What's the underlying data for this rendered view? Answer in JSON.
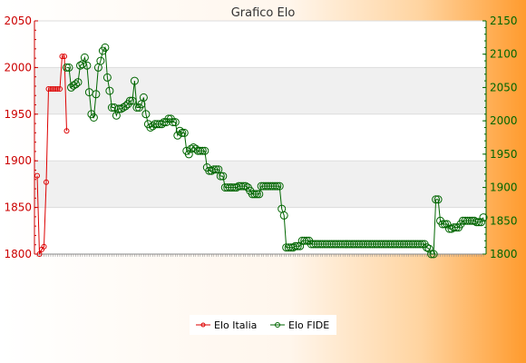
{
  "chart_data": {
    "type": "line",
    "title": "Grafico Elo",
    "grid": true,
    "legend_placement": "bottom-center",
    "left_axis": {
      "range": [
        1800,
        2050
      ],
      "ticks": [
        1800,
        1850,
        1900,
        1950,
        2000,
        2050
      ],
      "color": "#cc0000"
    },
    "right_axis": {
      "range": [
        1800,
        2150
      ],
      "ticks": [
        1800,
        1850,
        1900,
        1950,
        2000,
        2050,
        2100,
        2150
      ],
      "color": "#006600"
    },
    "series": [
      {
        "name": "Elo Italia",
        "axis": "left",
        "color": "#dd0000",
        "start_index": 0,
        "values": [
          1884,
          1800,
          1805,
          1808,
          1877,
          1977,
          1977,
          1977,
          1977,
          1977,
          1977,
          2012,
          2012,
          1932
        ]
      },
      {
        "name": "Elo FIDE",
        "axis": "right",
        "color": "#006600",
        "start_index": 13,
        "values": [
          2080,
          2080,
          2050,
          2053,
          2055,
          2058,
          2083,
          2085,
          2095,
          2083,
          2043,
          2010,
          2005,
          2040,
          2080,
          2090,
          2105,
          2110,
          2065,
          2045,
          2020,
          2020,
          2008,
          2018,
          2018,
          2020,
          2022,
          2025,
          2030,
          2030,
          2060,
          2020,
          2020,
          2025,
          2035,
          2010,
          1995,
          1990,
          1992,
          1995,
          1995,
          1995,
          1995,
          1998,
          1998,
          2003,
          2003,
          1998,
          1998,
          1978,
          1985,
          1982,
          1982,
          1955,
          1950,
          1958,
          1960,
          1958,
          1955,
          1955,
          1955,
          1955,
          1930,
          1925,
          1925,
          1927,
          1927,
          1927,
          1917,
          1917,
          1900,
          1900,
          1900,
          1900,
          1900,
          1900,
          1902,
          1902,
          1902,
          1902,
          1900,
          1895,
          1890,
          1890,
          1890,
          1890,
          1902,
          1902,
          1902,
          1902,
          1902,
          1902,
          1902,
          1902,
          1902,
          1868,
          1858,
          1810,
          1810,
          1810,
          1810,
          1812,
          1812,
          1812,
          1820,
          1820,
          1820,
          1820,
          1815,
          1815,
          1815,
          1815,
          1815,
          1815,
          1815,
          1815,
          1815,
          1815,
          1815,
          1815,
          1815,
          1815,
          1815,
          1815,
          1815,
          1815,
          1815,
          1815,
          1815,
          1815,
          1815,
          1815,
          1815,
          1815,
          1815,
          1815,
          1815,
          1815,
          1815,
          1815,
          1815,
          1815,
          1815,
          1815,
          1815,
          1815,
          1815,
          1815,
          1815,
          1815,
          1815,
          1815,
          1815,
          1815,
          1815,
          1815,
          1815,
          1815,
          1815,
          1810,
          1808,
          1800,
          1800,
          1882,
          1882,
          1850,
          1845,
          1845,
          1845,
          1838,
          1838,
          1840,
          1840,
          1840,
          1845,
          1850,
          1850,
          1850,
          1850,
          1850,
          1850,
          1848,
          1848,
          1848,
          1855
        ]
      }
    ]
  }
}
